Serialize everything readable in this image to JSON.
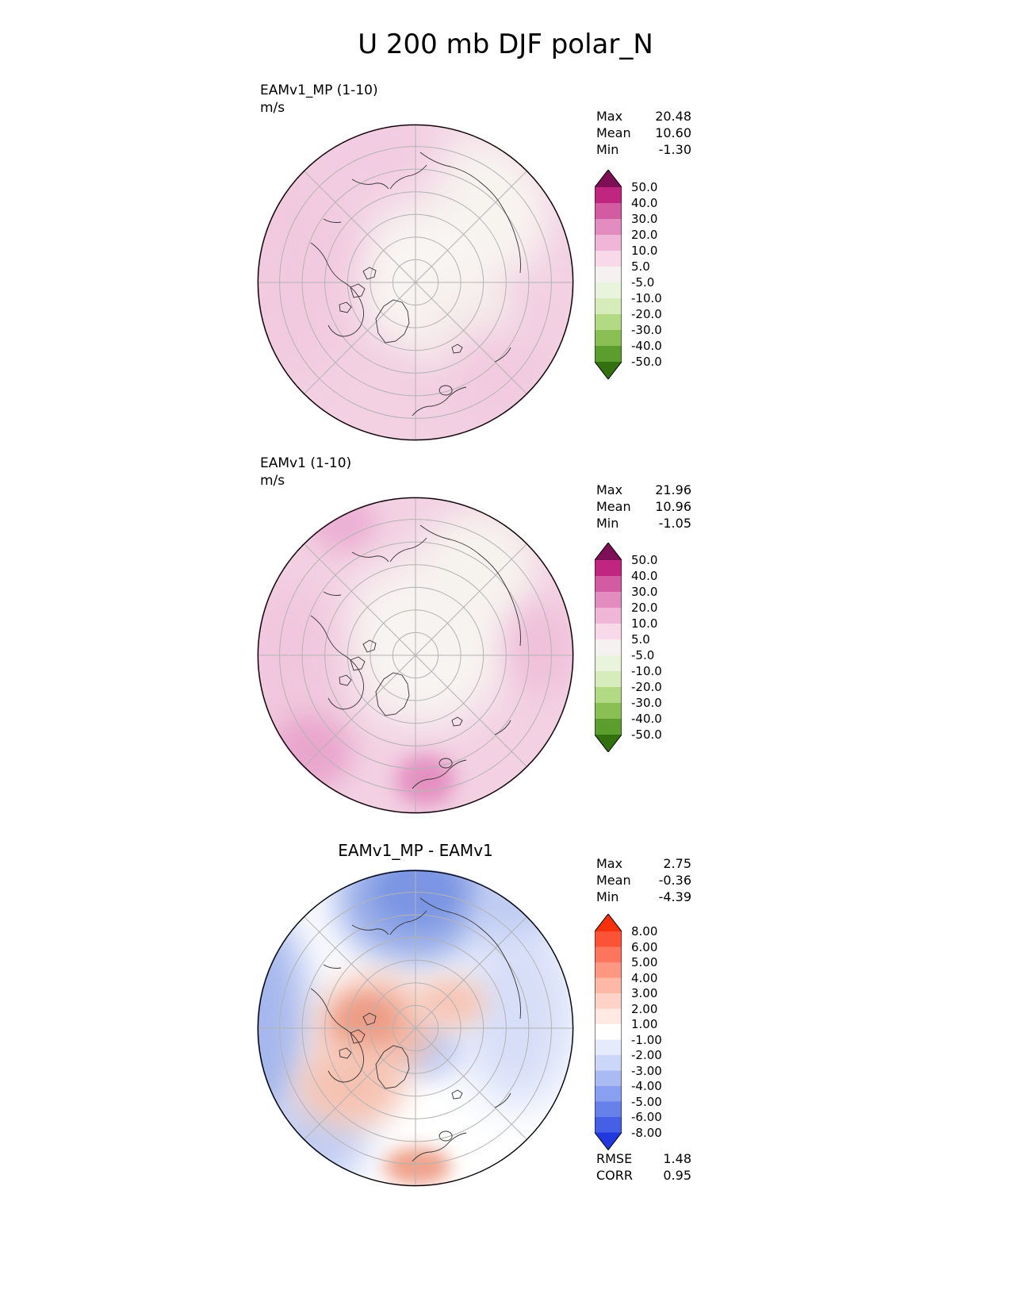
{
  "title": "U 200 mb DJF polar_N",
  "chart_data": [
    {
      "type": "heatmap",
      "projection": "north_polar_stereographic",
      "title": "EAMv1_MP (1-10)",
      "units": "m/s",
      "stats": [
        {
          "label": "Max",
          "value": "20.48"
        },
        {
          "label": "Mean",
          "value": "10.60"
        },
        {
          "label": "Min",
          "value": "-1.30"
        }
      ],
      "colorbar": {
        "tick_labels": [
          "50.0",
          "40.0",
          "30.0",
          "20.0",
          "10.0",
          "5.0",
          "-5.0",
          "-10.0",
          "-20.0",
          "-30.0",
          "-40.0",
          "-50.0"
        ],
        "levels": [
          50,
          40,
          30,
          20,
          10,
          5,
          -5,
          -10,
          -20,
          -30,
          -40,
          -50
        ],
        "segment_colors": [
          "#c0267f",
          "#d25ba2",
          "#e38cc0",
          "#efb6d7",
          "#f8d9e9",
          "#f6f1f1",
          "#eaf4dd",
          "#d6ecba",
          "#b2da85",
          "#8abf55",
          "#5c9e2e"
        ],
        "over_color": "#7e0e56",
        "under_color": "#33710f"
      }
    },
    {
      "type": "heatmap",
      "projection": "north_polar_stereographic",
      "title": "EAMv1 (1-10)",
      "units": "m/s",
      "stats": [
        {
          "label": "Max",
          "value": "21.96"
        },
        {
          "label": "Mean",
          "value": "10.96"
        },
        {
          "label": "Min",
          "value": "-1.05"
        }
      ],
      "colorbar": {
        "tick_labels": [
          "50.0",
          "40.0",
          "30.0",
          "20.0",
          "10.0",
          "5.0",
          "-5.0",
          "-10.0",
          "-20.0",
          "-30.0",
          "-40.0",
          "-50.0"
        ],
        "levels": [
          50,
          40,
          30,
          20,
          10,
          5,
          -5,
          -10,
          -20,
          -30,
          -40,
          -50
        ],
        "segment_colors": [
          "#c0267f",
          "#d25ba2",
          "#e38cc0",
          "#efb6d7",
          "#f8d9e9",
          "#f6f1f1",
          "#eaf4dd",
          "#d6ecba",
          "#b2da85",
          "#8abf55",
          "#5c9e2e"
        ],
        "over_color": "#7e0e56",
        "under_color": "#33710f"
      }
    },
    {
      "type": "heatmap",
      "projection": "north_polar_stereographic",
      "title": "EAMv1_MP - EAMv1",
      "units": "m/s",
      "stats": [
        {
          "label": "Max",
          "value": "2.75"
        },
        {
          "label": "Mean",
          "value": "-0.36"
        },
        {
          "label": "Min",
          "value": "-4.39"
        }
      ],
      "extra_stats": [
        {
          "label": "RMSE",
          "value": "1.48"
        },
        {
          "label": "CORR",
          "value": "0.95"
        }
      ],
      "colorbar": {
        "tick_labels": [
          "8.00",
          "6.00",
          "5.00",
          "4.00",
          "3.00",
          "2.00",
          "1.00",
          "-1.00",
          "-2.00",
          "-3.00",
          "-4.00",
          "-5.00",
          "-6.00",
          "-8.00"
        ],
        "levels": [
          8,
          6,
          5,
          4,
          3,
          2,
          1,
          -1,
          -2,
          -3,
          -4,
          -5,
          -6,
          -8
        ],
        "segment_colors": [
          "#fb5338",
          "#fc755c",
          "#fd9781",
          "#feb8a6",
          "#fed2c6",
          "#ffe9e3",
          "#ffffff",
          "#e6ebfc",
          "#ccd6f9",
          "#aabbf4",
          "#88a0ef",
          "#6781ea",
          "#4560e5"
        ],
        "over_color": "#f5300b",
        "under_color": "#2038dd"
      }
    }
  ]
}
